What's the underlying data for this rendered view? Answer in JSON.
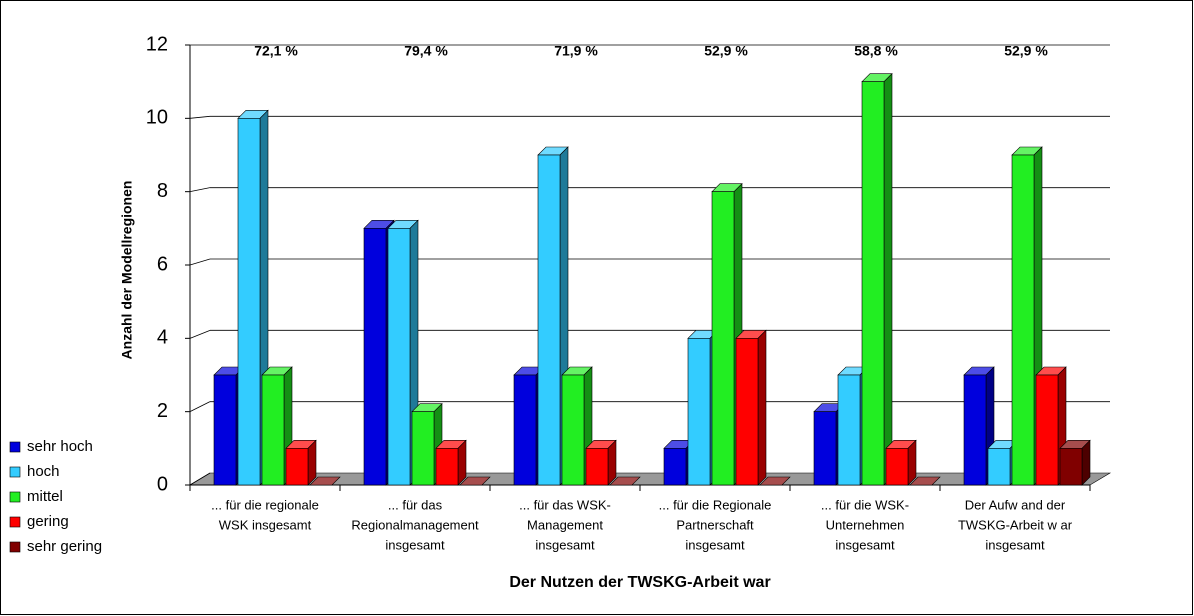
{
  "chart_data": {
    "type": "bar3d",
    "y_label": "Anzahl der Modellregionen",
    "x_label": "Der Nutzen der TWSKG-Arbeit war",
    "categories": [
      [
        "... für die regionale",
        "WSK insgesamt"
      ],
      [
        "... für das",
        "Regionalmanagement",
        "insgesamt"
      ],
      [
        "...  für das WSK-",
        "Management",
        "insgesamt"
      ],
      [
        "... für die Regionale",
        "Partnerschaft",
        "insgesamt"
      ],
      [
        "... für die WSK-",
        "Unternehmen",
        "insgesamt"
      ],
      [
        "Der Aufw and der",
        "TWSKG-Arbeit w ar",
        "insgesamt"
      ]
    ],
    "annotations": [
      "72,1 %",
      "79,4 %",
      "71,9 %",
      "52,9 %",
      "58,8 %",
      "52,9 %"
    ],
    "series": [
      {
        "name": "sehr hoch",
        "color": "#0000dd",
        "values": [
          3,
          7,
          3,
          1,
          2,
          3
        ]
      },
      {
        "name": "hoch",
        "color": "#33ccff",
        "values": [
          10,
          7,
          9,
          4,
          3,
          1
        ]
      },
      {
        "name": "mittel",
        "color": "#22ee22",
        "values": [
          3,
          2,
          3,
          8,
          11,
          9
        ]
      },
      {
        "name": "gering",
        "color": "#ff0000",
        "values": [
          1,
          1,
          1,
          4,
          1,
          3
        ]
      },
      {
        "name": "sehr gering",
        "color": "#800000",
        "values": [
          0,
          0,
          0,
          0,
          0,
          1
        ]
      }
    ],
    "ylim": [
      0,
      12
    ],
    "yticks": [
      0,
      2,
      4,
      6,
      8,
      10,
      12
    ],
    "grid": true,
    "legend": "bottom-left"
  }
}
